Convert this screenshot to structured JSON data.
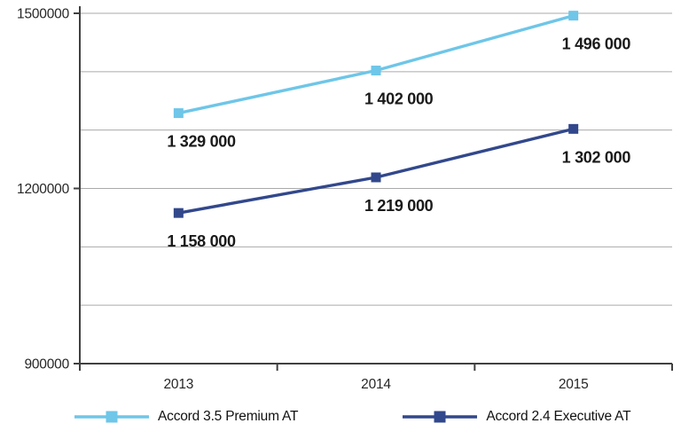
{
  "chart_data": {
    "type": "line",
    "title": "",
    "xlabel": "",
    "ylabel": "",
    "categories": [
      "2013",
      "2014",
      "2015"
    ],
    "series": [
      {
        "id": "accord-35-premium-at",
        "name": "Accord 3.5 Premium AT",
        "color": "#6ec6e8",
        "values": [
          1329000,
          1402000,
          1496000
        ],
        "labels": [
          "1 329 000",
          "1 402 000",
          "1 496 000"
        ]
      },
      {
        "id": "accord-24-executive-at",
        "name": "Accord 2.4 Executive AT",
        "color": "#32488c",
        "values": [
          1158000,
          1219000,
          1302000
        ],
        "labels": [
          "1 158 000",
          "1 219 000",
          "1 302 000"
        ]
      }
    ],
    "ylim": [
      900000,
      1500000
    ],
    "yticks": [
      {
        "value": 900000,
        "label": "900000"
      },
      {
        "value": 1200000,
        "label": "1200000"
      },
      {
        "value": 1500000,
        "label": "1500000"
      }
    ],
    "gridlines": [
      1000000,
      1100000,
      1200000,
      1300000,
      1400000,
      1500000
    ],
    "grid": "on",
    "legend_position": "bottom",
    "colors": {
      "grid": "#aaaaaa",
      "axis": "#404040"
    }
  }
}
